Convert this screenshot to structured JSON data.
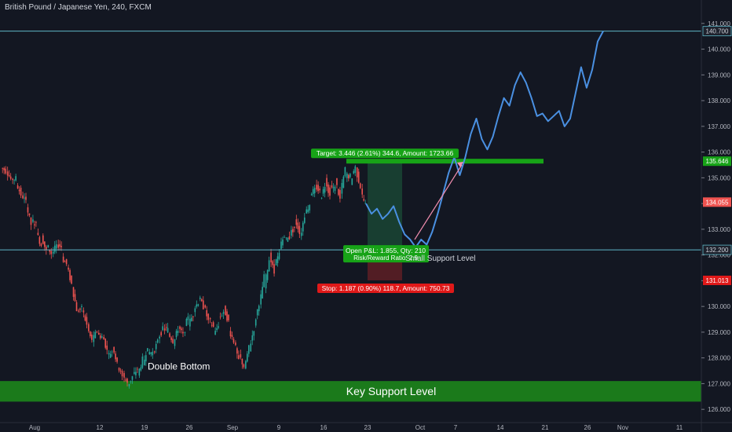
{
  "chart_title": "British Pound / Japanese Yen, 240, FXCM",
  "colors": {
    "background": "#131722",
    "candle_up": "#26a69a",
    "candle_down": "#ef5350",
    "projection": "#4a90e2",
    "support_zone": "#1b7a1b",
    "target_label": "#17a317",
    "stop_label": "#e01919",
    "hline": "#5fb7c7"
  },
  "chart_data": {
    "type": "candlestick",
    "y_axis": {
      "range": [
        125.7,
        141.3
      ],
      "ticks": [
        "126.000",
        "127.000",
        "128.000",
        "129.000",
        "130.000",
        "131.000",
        "132.000",
        "133.000",
        "134.000",
        "135.000",
        "136.000",
        "137.000",
        "138.000",
        "139.000",
        "140.000",
        "141.000"
      ]
    },
    "x_axis": {
      "ticks": [
        "Aug",
        "12",
        "19",
        "26",
        "Sep",
        "9",
        "16",
        "23",
        "Oct",
        "7",
        "14",
        "21",
        "26",
        "Nov",
        "11"
      ]
    },
    "price_path": [
      [
        0,
        135.4
      ],
      [
        2,
        135.1
      ],
      [
        4,
        134.4
      ],
      [
        6,
        133.4
      ],
      [
        8,
        132.6
      ],
      [
        10,
        132.0
      ],
      [
        11,
        132.4
      ],
      [
        12,
        132.1
      ],
      [
        13,
        131.7
      ],
      [
        14,
        130.8
      ],
      [
        15,
        130.0
      ],
      [
        16,
        129.8
      ],
      [
        17,
        129.3
      ],
      [
        18,
        128.6
      ],
      [
        19,
        129.1
      ],
      [
        20,
        128.9
      ],
      [
        21,
        128.2
      ],
      [
        22,
        128.5
      ],
      [
        23,
        127.9
      ],
      [
        24,
        127.4
      ],
      [
        25,
        127.1
      ],
      [
        26,
        127.3
      ],
      [
        27,
        127.5
      ],
      [
        28,
        127.8
      ],
      [
        29,
        128.3
      ],
      [
        30,
        128.0
      ],
      [
        31,
        128.7
      ],
      [
        32,
        129.2
      ],
      [
        33,
        129.0
      ],
      [
        34,
        128.7
      ],
      [
        35,
        129.3
      ],
      [
        36,
        128.9
      ],
      [
        37,
        129.5
      ],
      [
        38,
        129.8
      ],
      [
        39,
        130.4
      ],
      [
        40,
        130.1
      ],
      [
        41,
        129.6
      ],
      [
        42,
        129.0
      ],
      [
        43,
        129.4
      ],
      [
        44,
        129.8
      ],
      [
        45,
        129.2
      ],
      [
        46,
        128.6
      ],
      [
        47,
        128.0
      ],
      [
        48,
        127.6
      ],
      [
        49,
        128.2
      ],
      [
        50,
        129.1
      ],
      [
        51,
        130.0
      ],
      [
        52,
        131.0
      ],
      [
        53,
        131.8
      ],
      [
        54,
        131.5
      ],
      [
        55,
        132.2
      ],
      [
        56,
        132.6
      ],
      [
        57,
        132.9
      ],
      [
        58,
        133.2
      ],
      [
        59,
        132.8
      ],
      [
        60,
        133.6
      ],
      [
        61,
        134.2
      ],
      [
        62,
        134.6
      ],
      [
        63,
        134.3
      ],
      [
        64,
        134.9
      ],
      [
        65,
        134.5
      ],
      [
        66,
        134.8
      ],
      [
        67,
        134.3
      ],
      [
        68,
        135.3
      ],
      [
        69,
        135.0
      ],
      [
        70,
        135.3
      ],
      [
        71,
        134.6
      ],
      [
        72,
        134.05
      ]
    ],
    "levels": [
      {
        "name": "Key Support Level",
        "from": 126.3,
        "to": 127.1
      },
      {
        "name": "Small Support Level",
        "value": 132.2
      },
      {
        "name": "Upper Level",
        "value": 140.7
      }
    ],
    "position": {
      "entry": 132.2,
      "target": 135.646,
      "stop": 131.013,
      "target_label": "Target: 3.446 (2.61%) 344.6, Amount: 1723.66",
      "stop_label": "Stop: 1.187 (0.90%) 118.7, Amount: 750.73",
      "pnl_label": "Open P&L: 1.855, Qty: 210",
      "rr_label": "Risk/Reward Ratio: 2.9"
    },
    "price_tags": [
      {
        "text": "140.700",
        "value": 140.7,
        "kind": "level"
      },
      {
        "text": "135.646",
        "value": 135.646,
        "kind": "target"
      },
      {
        "text": "134.055",
        "value": 134.055,
        "kind": "last"
      },
      {
        "text": "132.200",
        "value": 132.2,
        "kind": "level"
      },
      {
        "text": "131.013",
        "value": 131.013,
        "kind": "stop"
      }
    ],
    "annotations": {
      "double_bottom": "Double Bottom",
      "key_support": "Key Support Level",
      "small_support": "Small Support Level"
    },
    "projection_path": [
      [
        134.0
      ],
      [
        133.6
      ],
      [
        133.8
      ],
      [
        133.4
      ],
      [
        133.6
      ],
      [
        133.9
      ],
      [
        133.3
      ],
      [
        132.8
      ],
      [
        132.6
      ],
      [
        132.3
      ],
      [
        132.6
      ],
      [
        132.4
      ],
      [
        132.9
      ],
      [
        133.6
      ],
      [
        134.4
      ],
      [
        135.2
      ],
      [
        135.8
      ],
      [
        135.1
      ],
      [
        135.8
      ],
      [
        136.7
      ],
      [
        137.3
      ],
      [
        136.5
      ],
      [
        136.1
      ],
      [
        136.6
      ],
      [
        137.4
      ],
      [
        138.1
      ],
      [
        137.8
      ],
      [
        138.6
      ],
      [
        139.1
      ],
      [
        138.7
      ],
      [
        138.1
      ],
      [
        137.4
      ],
      [
        137.5
      ],
      [
        137.2
      ],
      [
        137.4
      ],
      [
        137.6
      ],
      [
        137.0
      ],
      [
        137.3
      ],
      [
        138.3
      ],
      [
        139.3
      ],
      [
        138.5
      ],
      [
        139.2
      ],
      [
        140.3
      ],
      [
        140.7
      ]
    ]
  }
}
